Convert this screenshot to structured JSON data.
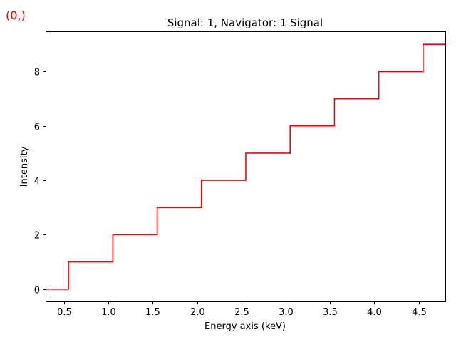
{
  "indicator": {
    "text": "(0,)",
    "color": "#ff0000"
  },
  "chart_data": {
    "type": "line",
    "drawstyle": "steps-mid",
    "title": "Signal: 1, Navigator: 1 Signal",
    "xlabel": "Energy axis (keV)",
    "ylabel": "Intensity",
    "xlim": [
      0.3,
      4.8
    ],
    "ylim": [
      -0.45,
      9.45
    ],
    "grid": false,
    "line_color": "#ff0000",
    "x_ticks": [
      0.5,
      1.0,
      1.5,
      2.0,
      2.5,
      3.0,
      3.5,
      4.0,
      4.5
    ],
    "x_tick_labels": [
      "0.5",
      "1.0",
      "1.5",
      "2.0",
      "2.5",
      "3.0",
      "3.5",
      "4.0",
      "4.5"
    ],
    "y_ticks": [
      0,
      2,
      4,
      6,
      8
    ],
    "y_tick_labels": [
      "0",
      "2",
      "4",
      "6",
      "8"
    ],
    "series": [
      {
        "x": [
          0.3,
          0.8,
          1.3,
          1.8,
          2.3,
          2.8,
          3.3,
          3.8,
          4.3,
          4.8
        ],
        "values": [
          0,
          1,
          2,
          3,
          4,
          5,
          6,
          7,
          8,
          9
        ]
      }
    ]
  }
}
